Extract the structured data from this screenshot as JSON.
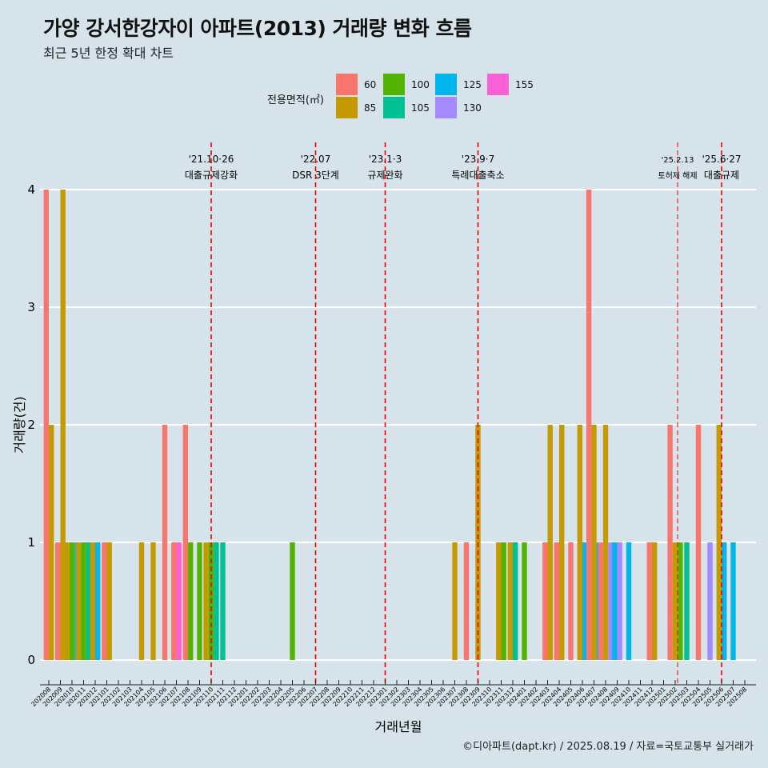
{
  "title": "가양 강서한강자이 아파트(2013) 거래량 변화 흐름",
  "subtitle": "최근 5년 한정 확대 차트",
  "caption": "©디아파트(dapt.kr) / 2025.08.19 / 자료=국토교통부 실거래가",
  "legend": {
    "title": "전용면적(㎡)",
    "items": [
      {
        "label": "60",
        "color": "#f8766d"
      },
      {
        "label": "85",
        "color": "#c49a00"
      },
      {
        "label": "100",
        "color": "#53b400"
      },
      {
        "label": "105",
        "color": "#00c094"
      },
      {
        "label": "125",
        "color": "#00b6eb"
      },
      {
        "label": "130",
        "color": "#a58aff"
      },
      {
        "label": "155",
        "color": "#fb61d7"
      }
    ]
  },
  "chart_data": {
    "type": "bar",
    "title": "가양 강서한강자이 아파트(2013) 거래량 변화 흐름",
    "subtitle": "최근 5년 한정 확대 차트",
    "xlabel": "거래년월",
    "ylabel": "거래량(건)",
    "ylim": [
      0,
      4
    ],
    "yticks": [
      0,
      1,
      2,
      3,
      4
    ],
    "grid": true,
    "legend_position": "top",
    "categories": [
      "202008",
      "202009",
      "202010",
      "202011",
      "202012",
      "202101",
      "202102",
      "202103",
      "202104",
      "202105",
      "202106",
      "202107",
      "202108",
      "202109",
      "202110",
      "202111",
      "202112",
      "202201",
      "202202",
      "202203",
      "202204",
      "202205",
      "202206",
      "202207",
      "202208",
      "202209",
      "202210",
      "202211",
      "202212",
      "202301",
      "202302",
      "202303",
      "202304",
      "202305",
      "202306",
      "202307",
      "202308",
      "202309",
      "202310",
      "202311",
      "202312",
      "202401",
      "202402",
      "202403",
      "202404",
      "202405",
      "202406",
      "202407",
      "202408",
      "202409",
      "202410",
      "202411",
      "202412",
      "202501",
      "202502",
      "202503",
      "202504",
      "202505",
      "202506",
      "202507",
      "202508"
    ],
    "series": [
      {
        "name": "60",
        "color": "#f8766d",
        "values": [
          4,
          1,
          0,
          0,
          0,
          1,
          0,
          0,
          0,
          0,
          2,
          1,
          2,
          0,
          0,
          0,
          0,
          0,
          0,
          0,
          0,
          0,
          0,
          0,
          0,
          0,
          0,
          0,
          0,
          0,
          0,
          0,
          0,
          0,
          0,
          0,
          1,
          0,
          0,
          0,
          0,
          0,
          0,
          1,
          1,
          1,
          0,
          4,
          1,
          0,
          0,
          0,
          1,
          0,
          2,
          0,
          2,
          0,
          0,
          0,
          0
        ]
      },
      {
        "name": "85",
        "color": "#c49a00",
        "values": [
          2,
          4,
          1,
          1,
          1,
          1,
          0,
          0,
          1,
          1,
          0,
          0,
          0,
          0,
          1,
          0,
          0,
          0,
          0,
          0,
          0,
          0,
          0,
          0,
          0,
          0,
          0,
          0,
          0,
          0,
          0,
          0,
          0,
          0,
          0,
          1,
          0,
          2,
          0,
          1,
          1,
          0,
          0,
          2,
          2,
          0,
          2,
          2,
          2,
          0,
          0,
          0,
          1,
          0,
          1,
          0,
          0,
          0,
          2,
          0,
          0
        ]
      },
      {
        "name": "100",
        "color": "#53b400",
        "values": [
          0,
          0,
          1,
          1,
          0,
          0,
          0,
          0,
          0,
          0,
          0,
          0,
          1,
          1,
          1,
          0,
          0,
          0,
          0,
          0,
          0,
          1,
          0,
          0,
          0,
          0,
          0,
          0,
          0,
          0,
          0,
          0,
          0,
          0,
          0,
          0,
          0,
          0,
          0,
          1,
          0,
          1,
          0,
          0,
          0,
          0,
          0,
          0,
          0,
          0,
          0,
          0,
          0,
          0,
          1,
          0,
          0,
          0,
          0,
          0,
          0
        ]
      },
      {
        "name": "105",
        "color": "#00c094",
        "values": [
          0,
          0,
          0,
          1,
          0,
          0,
          0,
          0,
          0,
          0,
          0,
          0,
          0,
          0,
          1,
          1,
          0,
          0,
          0,
          0,
          0,
          0,
          0,
          0,
          0,
          0,
          0,
          0,
          0,
          0,
          0,
          0,
          0,
          0,
          0,
          0,
          0,
          0,
          0,
          0,
          1,
          0,
          0,
          0,
          0,
          0,
          0,
          0,
          0,
          0,
          0,
          0,
          0,
          0,
          0,
          1,
          0,
          0,
          0,
          0,
          0
        ]
      },
      {
        "name": "125",
        "color": "#00b6eb",
        "values": [
          0,
          0,
          1,
          0,
          1,
          0,
          0,
          0,
          0,
          0,
          0,
          0,
          0,
          0,
          0,
          0,
          0,
          0,
          0,
          0,
          0,
          0,
          0,
          0,
          0,
          0,
          0,
          0,
          0,
          0,
          0,
          0,
          0,
          0,
          0,
          0,
          0,
          0,
          0,
          0,
          0,
          0,
          0,
          0,
          0,
          0,
          1,
          1,
          0,
          1,
          1,
          0,
          0,
          0,
          0,
          0,
          0,
          0,
          1,
          1,
          0
        ]
      },
      {
        "name": "130",
        "color": "#a58aff",
        "values": [
          0,
          0,
          0,
          0,
          0,
          0,
          0,
          0,
          0,
          0,
          0,
          0,
          0,
          0,
          0,
          0,
          0,
          0,
          0,
          0,
          0,
          0,
          0,
          0,
          0,
          0,
          0,
          0,
          0,
          0,
          0,
          0,
          0,
          0,
          0,
          0,
          0,
          0,
          0,
          0,
          0,
          0,
          0,
          0,
          0,
          0,
          0,
          0,
          1,
          1,
          0,
          0,
          0,
          0,
          0,
          0,
          0,
          1,
          0,
          0,
          0
        ]
      },
      {
        "name": "155",
        "color": "#fb61d7",
        "values": [
          0,
          0,
          0,
          0,
          0,
          0,
          0,
          0,
          0,
          0,
          0,
          1,
          0,
          0,
          0,
          0,
          0,
          0,
          0,
          0,
          0,
          0,
          0,
          0,
          0,
          0,
          0,
          0,
          0,
          0,
          0,
          0,
          0,
          0,
          0,
          0,
          0,
          0,
          0,
          0,
          0,
          0,
          0,
          0,
          0,
          0,
          0,
          0,
          0,
          0,
          0,
          0,
          0,
          0,
          0,
          0,
          0,
          0,
          0,
          0,
          0
        ]
      }
    ],
    "events": [
      {
        "date": "202110",
        "line1": "'21.10·26",
        "line2": "대출규제강화",
        "small": false
      },
      {
        "date": "202207",
        "line1": "'22.07",
        "line2": "DSR 3단계",
        "small": false
      },
      {
        "date": "202301",
        "line1": "'23.1·3",
        "line2": "규제완화",
        "small": false
      },
      {
        "date": "202309",
        "line1": "'23.9·7",
        "line2": "특례대출축소",
        "small": false
      },
      {
        "date": "202502",
        "line1": "'25.2.13",
        "line2": "토허제 해제",
        "small": true
      },
      {
        "date": "202506",
        "line1": "'25.6·27",
        "line2": "대출규제",
        "small": false
      }
    ],
    "event_line_color": "#ee0000"
  }
}
